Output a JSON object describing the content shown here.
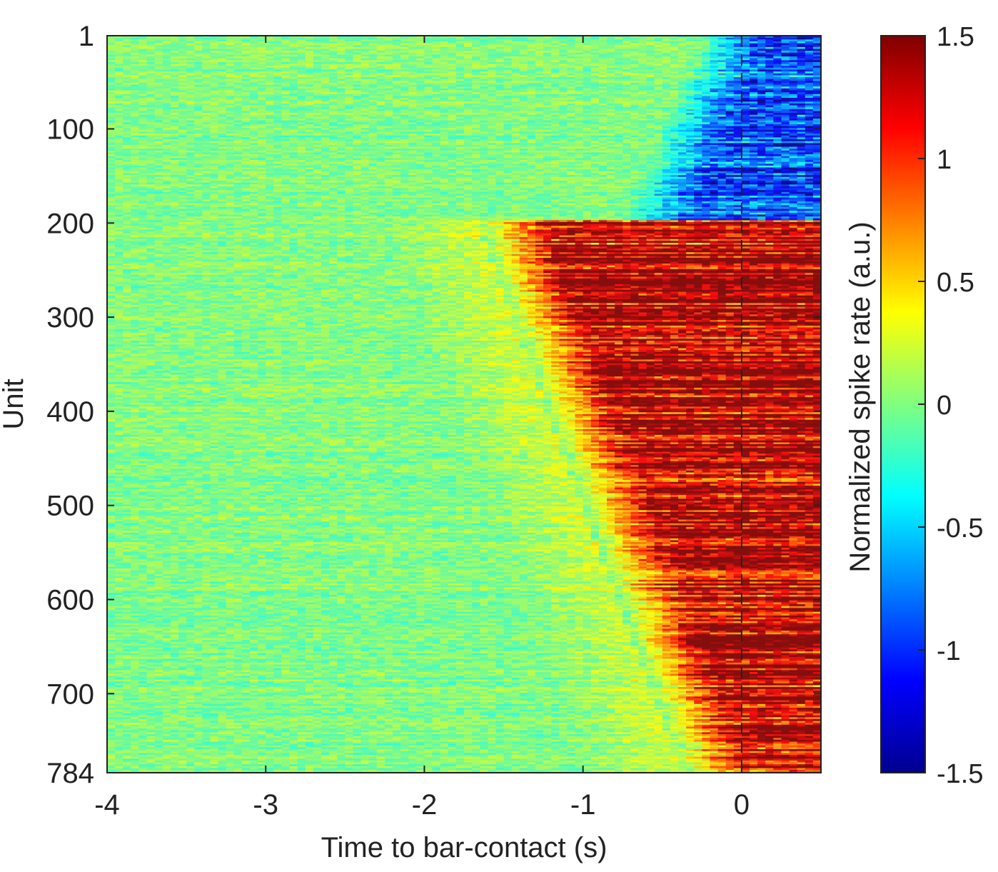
{
  "chart_data": {
    "type": "heatmap",
    "xlabel": "Time to bar-contact (s)",
    "ylabel": "Unit",
    "colorbar_label": "Normalized spike rate (a.u.)",
    "xlim": [
      -4,
      0.5
    ],
    "ylim": [
      1,
      784
    ],
    "x_ticks": [
      -4,
      -3,
      -2,
      -1,
      0
    ],
    "x_tick_labels": [
      "-4",
      "-3",
      "-2",
      "-1",
      "0"
    ],
    "y_ticks": [
      1,
      100,
      200,
      300,
      400,
      500,
      600,
      700,
      784
    ],
    "y_tick_labels": [
      "1",
      "100",
      "200",
      "300",
      "400",
      "500",
      "600",
      "700",
      "784"
    ],
    "clim": [
      -1.5,
      1.5
    ],
    "colorbar_ticks": [
      1.5,
      1,
      0.5,
      0,
      -0.5,
      -1,
      -1.5
    ],
    "colorbar_tick_labels": [
      "1.5",
      "1",
      "0.5",
      "0",
      "-0.5",
      "-1",
      "-1.5"
    ],
    "colormap": "jet",
    "y_direction": "reversed",
    "grid": false,
    "reference_line": {
      "x": 0,
      "style": "dashed",
      "color": "#222222"
    },
    "groups": [
      {
        "units": [
          1,
          195
        ],
        "response": "suppressed",
        "peak_value": -1.0,
        "onset_time_s": [
          -0.3,
          -0.8
        ]
      },
      {
        "units": [
          196,
          784
        ],
        "response": "excited",
        "peak_value": 1.4,
        "onset_time_s": [
          -1.7,
          -0.4
        ]
      }
    ]
  }
}
